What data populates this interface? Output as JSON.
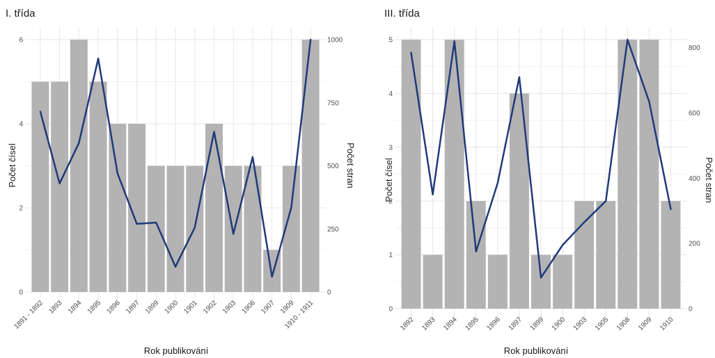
{
  "chart_data": [
    {
      "type": "bar",
      "title": "I. třída",
      "xlabel": "Rok publikování",
      "ylabel": "Počet čísel",
      "y2label": "Počet stran",
      "categories": [
        "1891 - 1892",
        "1893",
        "1894",
        "1895",
        "1896",
        "1897",
        "1899",
        "1900",
        "1901",
        "1902",
        "1903",
        "1906",
        "1907",
        "1909",
        "1910 - 1911"
      ],
      "series": [
        {
          "name": "",
          "type": "bar",
          "axis": "left",
          "values": [
            5,
            5,
            6,
            5,
            4,
            4,
            3,
            3,
            3,
            4,
            3,
            3,
            1,
            3,
            6
          ]
        },
        {
          "name": "",
          "type": "line",
          "axis": "right",
          "values": [
            715,
            430,
            590,
            925,
            470,
            270,
            275,
            100,
            255,
            635,
            230,
            535,
            60,
            335,
            1000
          ]
        }
      ],
      "ylim": [
        0,
        6
      ],
      "y_ticks": [
        0,
        2,
        4,
        6
      ],
      "y2lim": [
        0,
        1000
      ],
      "y2_ticks": [
        0,
        250,
        500,
        750,
        1000
      ],
      "grid": true,
      "colors": {
        "bar": "#b3b3b3",
        "line": "#1f3a7a"
      }
    },
    {
      "type": "bar",
      "title": "III. třída",
      "xlabel": "Rok publikování",
      "ylabel": "Počet čísel",
      "y2label": "Počet stran",
      "categories": [
        "1892",
        "1893",
        "1894",
        "1895",
        "1896",
        "1897",
        "1899",
        "1900",
        "1903",
        "1905",
        "1908",
        "1909",
        "1910"
      ],
      "series": [
        {
          "name": "",
          "type": "bar",
          "axis": "left",
          "values": [
            5,
            1,
            5,
            2,
            1,
            4,
            1,
            1,
            2,
            2,
            5,
            5,
            2
          ]
        },
        {
          "name": "",
          "type": "line",
          "axis": "right",
          "values": [
            785,
            350,
            820,
            175,
            385,
            710,
            95,
            195,
            265,
            330,
            825,
            635,
            305
          ]
        }
      ],
      "ylim": [
        0,
        5
      ],
      "y_ticks": [
        0,
        1,
        2,
        3,
        4,
        5
      ],
      "y2lim": [
        0,
        825
      ],
      "y2_ticks": [
        0,
        200,
        400,
        600,
        800
      ],
      "grid": true,
      "colors": {
        "bar": "#b3b3b3",
        "line": "#1f3a7a"
      }
    }
  ]
}
